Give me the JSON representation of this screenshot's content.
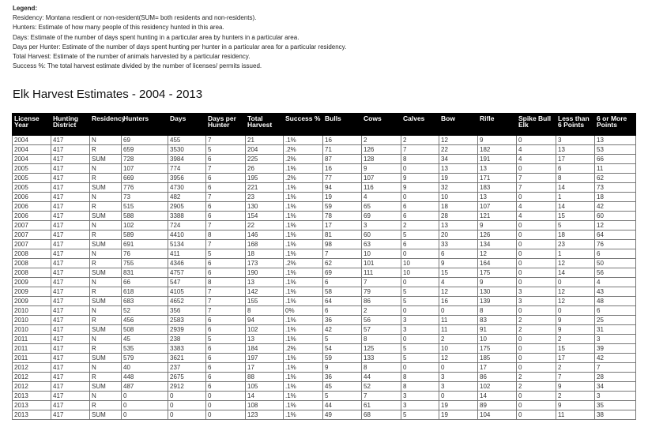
{
  "legend": {
    "heading": "Legend:",
    "lines": [
      "Residency: Montana resdient or non-resident(SUM= both residents and non-residents).",
      "Hunters: Estimate of how many people of this residency hunted in this area.",
      "Days: Estimate of the number of days spent hunting in a particular area by hunters in a particular area.",
      "Days per Hunter: Estimate of the number of days spent hunting per hunter in a particular area for a particular residency.",
      "Total Harvest: Estimate of the number of animals harvested by a particular residency.",
      "Success %: The total harvest estimate divided by the number of licenses/ permits issued."
    ]
  },
  "title": "Elk Harvest Estimates - 2004 - 2013",
  "table": {
    "headers": [
      "License Year",
      "Hunting District",
      "Residency",
      "Hunters",
      "Days",
      "Days per Hunter",
      "Total Harvest",
      "Success %",
      "Bulls",
      "Cows",
      "Calves",
      "Bow",
      "Rifle",
      "Spike Bull Elk",
      "Less than 6 Points",
      "6 or More Points"
    ],
    "rows": [
      [
        "2004",
        "417",
        "N",
        "69",
        "455",
        "7",
        "21",
        ".1%",
        "16",
        "2",
        "2",
        "12",
        "9",
        "0",
        "3",
        "13"
      ],
      [
        "2004",
        "417",
        "R",
        "659",
        "3530",
        "5",
        "204",
        ".2%",
        "71",
        "126",
        "7",
        "22",
        "182",
        "4",
        "13",
        "53"
      ],
      [
        "2004",
        "417",
        "SUM",
        "728",
        "3984",
        "6",
        "225",
        ".2%",
        "87",
        "128",
        "8",
        "34",
        "191",
        "4",
        "17",
        "66"
      ],
      [
        "2005",
        "417",
        "N",
        "107",
        "774",
        "7",
        "26",
        ".1%",
        "16",
        "9",
        "0",
        "13",
        "13",
        "0",
        "6",
        "11"
      ],
      [
        "2005",
        "417",
        "R",
        "669",
        "3956",
        "6",
        "195",
        ".2%",
        "77",
        "107",
        "9",
        "19",
        "171",
        "7",
        "8",
        "62"
      ],
      [
        "2005",
        "417",
        "SUM",
        "776",
        "4730",
        "6",
        "221",
        ".1%",
        "94",
        "116",
        "9",
        "32",
        "183",
        "7",
        "14",
        "73"
      ],
      [
        "2006",
        "417",
        "N",
        "73",
        "482",
        "7",
        "23",
        ".1%",
        "19",
        "4",
        "0",
        "10",
        "13",
        "0",
        "1",
        "18"
      ],
      [
        "2006",
        "417",
        "R",
        "515",
        "2905",
        "6",
        "130",
        ".1%",
        "59",
        "65",
        "6",
        "18",
        "107",
        "4",
        "14",
        "42"
      ],
      [
        "2006",
        "417",
        "SUM",
        "588",
        "3388",
        "6",
        "154",
        ".1%",
        "78",
        "69",
        "6",
        "28",
        "121",
        "4",
        "15",
        "60"
      ],
      [
        "2007",
        "417",
        "N",
        "102",
        "724",
        "7",
        "22",
        ".1%",
        "17",
        "3",
        "2",
        "13",
        "9",
        "0",
        "5",
        "12"
      ],
      [
        "2007",
        "417",
        "R",
        "589",
        "4410",
        "8",
        "146",
        ".1%",
        "81",
        "60",
        "5",
        "20",
        "126",
        "0",
        "18",
        "64"
      ],
      [
        "2007",
        "417",
        "SUM",
        "691",
        "5134",
        "7",
        "168",
        ".1%",
        "98",
        "63",
        "6",
        "33",
        "134",
        "0",
        "23",
        "76"
      ],
      [
        "2008",
        "417",
        "N",
        "76",
        "411",
        "5",
        "18",
        ".1%",
        "7",
        "10",
        "0",
        "6",
        "12",
        "0",
        "1",
        "6"
      ],
      [
        "2008",
        "417",
        "R",
        "755",
        "4346",
        "6",
        "173",
        ".2%",
        "62",
        "101",
        "10",
        "9",
        "164",
        "0",
        "12",
        "50"
      ],
      [
        "2008",
        "417",
        "SUM",
        "831",
        "4757",
        "6",
        "190",
        ".1%",
        "69",
        "111",
        "10",
        "15",
        "175",
        "0",
        "14",
        "56"
      ],
      [
        "2009",
        "417",
        "N",
        "66",
        "547",
        "8",
        "13",
        ".1%",
        "6",
        "7",
        "0",
        "4",
        "9",
        "0",
        "0",
        "4"
      ],
      [
        "2009",
        "417",
        "R",
        "618",
        "4105",
        "7",
        "142",
        ".1%",
        "58",
        "79",
        "5",
        "12",
        "130",
        "3",
        "12",
        "43"
      ],
      [
        "2009",
        "417",
        "SUM",
        "683",
        "4652",
        "7",
        "155",
        ".1%",
        "64",
        "86",
        "5",
        "16",
        "139",
        "3",
        "12",
        "48"
      ],
      [
        "2010",
        "417",
        "N",
        "52",
        "356",
        "7",
        "8",
        "0%",
        "6",
        "2",
        "0",
        "0",
        "8",
        "0",
        "0",
        "6"
      ],
      [
        "2010",
        "417",
        "R",
        "456",
        "2583",
        "6",
        "94",
        ".1%",
        "36",
        "56",
        "3",
        "11",
        "83",
        "2",
        "9",
        "25"
      ],
      [
        "2010",
        "417",
        "SUM",
        "508",
        "2939",
        "6",
        "102",
        ".1%",
        "42",
        "57",
        "3",
        "11",
        "91",
        "2",
        "9",
        "31"
      ],
      [
        "2011",
        "417",
        "N",
        "45",
        "238",
        "5",
        "13",
        ".1%",
        "5",
        "8",
        "0",
        "2",
        "10",
        "0",
        "2",
        "3"
      ],
      [
        "2011",
        "417",
        "R",
        "535",
        "3383",
        "6",
        "184",
        ".2%",
        "54",
        "125",
        "5",
        "10",
        "175",
        "0",
        "15",
        "39"
      ],
      [
        "2011",
        "417",
        "SUM",
        "579",
        "3621",
        "6",
        "197",
        ".1%",
        "59",
        "133",
        "5",
        "12",
        "185",
        "0",
        "17",
        "42"
      ],
      [
        "2012",
        "417",
        "N",
        "40",
        "237",
        "6",
        "17",
        ".1%",
        "9",
        "8",
        "0",
        "0",
        "17",
        "0",
        "2",
        "7"
      ],
      [
        "2012",
        "417",
        "R",
        "448",
        "2675",
        "6",
        "88",
        ".1%",
        "36",
        "44",
        "8",
        "3",
        "86",
        "2",
        "7",
        "28"
      ],
      [
        "2012",
        "417",
        "SUM",
        "487",
        "2912",
        "6",
        "105",
        ".1%",
        "45",
        "52",
        "8",
        "3",
        "102",
        "2",
        "9",
        "34"
      ],
      [
        "2013",
        "417",
        "N",
        "0",
        "0",
        "0",
        "14",
        ".1%",
        "5",
        "7",
        "3",
        "0",
        "14",
        "0",
        "2",
        "3"
      ],
      [
        "2013",
        "417",
        "R",
        "0",
        "0",
        "0",
        "108",
        ".1%",
        "44",
        "61",
        "3",
        "19",
        "89",
        "0",
        "9",
        "35"
      ],
      [
        "2013",
        "417",
        "SUM",
        "0",
        "0",
        "0",
        "123",
        ".1%",
        "49",
        "68",
        "5",
        "19",
        "104",
        "0",
        "11",
        "38"
      ]
    ]
  }
}
